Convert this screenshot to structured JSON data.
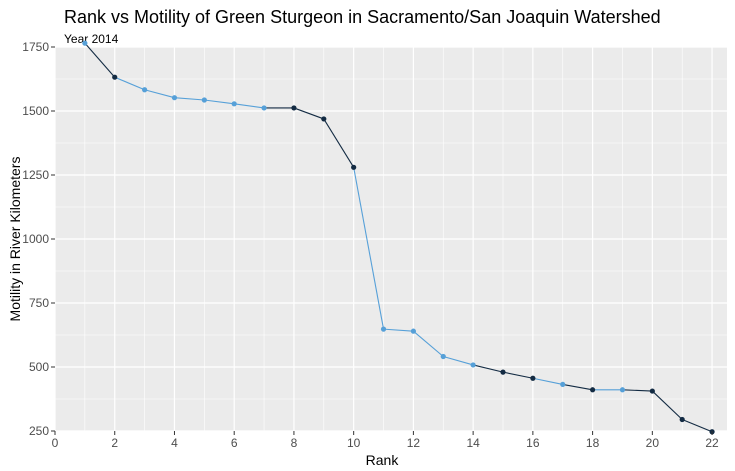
{
  "chart_data": {
    "type": "line",
    "title": "Rank vs Motility of Green Sturgeon in Sacramento/San Joaquin Watershed",
    "subtitle": "Year 2014",
    "xlabel": "Rank",
    "ylabel": "Motility in River Kilometers",
    "xlim": [
      0,
      22.5
    ],
    "ylim": [
      250,
      1750
    ],
    "x_ticks": [
      0,
      2,
      4,
      6,
      8,
      10,
      12,
      14,
      16,
      18,
      20,
      22
    ],
    "y_ticks": [
      250,
      500,
      750,
      1000,
      1250,
      1500,
      1750
    ],
    "grid": true,
    "colors": {
      "light": "#56a0d8",
      "dark": "#132b43",
      "panel": "#ebebeb",
      "grid": "#ffffff"
    },
    "points": [
      {
        "rank": 1,
        "motility": 1765,
        "shade": "light"
      },
      {
        "rank": 2,
        "motility": 1632,
        "shade": "dark"
      },
      {
        "rank": 3,
        "motility": 1583,
        "shade": "light"
      },
      {
        "rank": 4,
        "motility": 1552,
        "shade": "light"
      },
      {
        "rank": 5,
        "motility": 1543,
        "shade": "light"
      },
      {
        "rank": 6,
        "motility": 1528,
        "shade": "light"
      },
      {
        "rank": 7,
        "motility": 1512,
        "shade": "light"
      },
      {
        "rank": 8,
        "motility": 1512,
        "shade": "dark"
      },
      {
        "rank": 9,
        "motility": 1469,
        "shade": "dark"
      },
      {
        "rank": 10,
        "motility": 1280,
        "shade": "dark"
      },
      {
        "rank": 11,
        "motility": 648,
        "shade": "light"
      },
      {
        "rank": 12,
        "motility": 640,
        "shade": "light"
      },
      {
        "rank": 13,
        "motility": 541,
        "shade": "light"
      },
      {
        "rank": 14,
        "motility": 508,
        "shade": "light"
      },
      {
        "rank": 15,
        "motility": 480,
        "shade": "dark"
      },
      {
        "rank": 16,
        "motility": 456,
        "shade": "dark"
      },
      {
        "rank": 17,
        "motility": 432,
        "shade": "light"
      },
      {
        "rank": 18,
        "motility": 411,
        "shade": "dark"
      },
      {
        "rank": 19,
        "motility": 411,
        "shade": "light"
      },
      {
        "rank": 20,
        "motility": 406,
        "shade": "dark"
      },
      {
        "rank": 21,
        "motility": 295,
        "shade": "dark"
      },
      {
        "rank": 22,
        "motility": 247,
        "shade": "dark"
      }
    ]
  }
}
